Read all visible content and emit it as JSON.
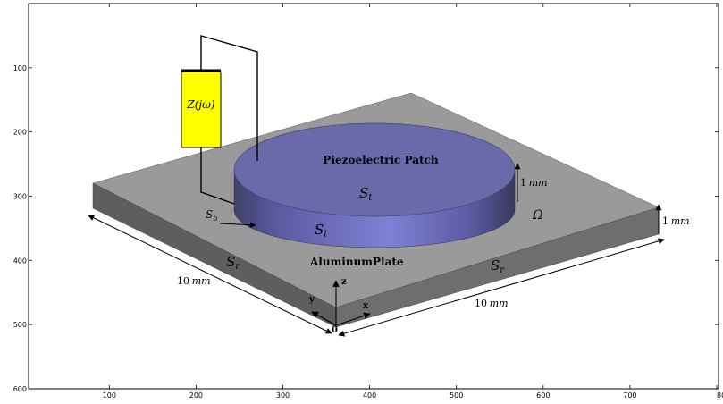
{
  "axes": {
    "x_ticks": [
      "100",
      "200",
      "300",
      "400",
      "500",
      "600",
      "700",
      "800"
    ],
    "y_ticks": [
      "100",
      "200",
      "300",
      "400",
      "500",
      "600"
    ]
  },
  "labels": {
    "impedance": "Z(jω)",
    "patch_title": "Piezoelectric Patch",
    "top_surface": "S",
    "top_surface_sub": "t",
    "lateral_surface": "S",
    "lateral_surface_sub": "l",
    "bottom_surface": "S",
    "bottom_surface_sub": "b",
    "plate_left_surface": "S",
    "plate_left_surface_sub": "r",
    "plate_right_surface": "S",
    "plate_right_surface_sub": "r",
    "plate_name": "AluminumPlate",
    "domain": "Ω",
    "patch_thickness_value": "1",
    "patch_thickness_unit": "mm",
    "plate_thickness_value": "1",
    "plate_thickness_unit": "mm",
    "plate_width_left_value": "10",
    "plate_width_left_unit": "mm",
    "plate_width_right_value": "10",
    "plate_width_right_unit": "mm",
    "axis_z": "z",
    "axis_y": "y",
    "axis_x": "x",
    "origin": "0"
  },
  "colors": {
    "plate_top": "#9a9a9a",
    "plate_left_face": "#5e5e5e",
    "plate_right_face": "#6e6e6e",
    "patch_top": "#6a6aaa",
    "patch_side": "#7878c8",
    "patch_side_dark": "#40406e",
    "impedance_fill": "#ffff00"
  }
}
